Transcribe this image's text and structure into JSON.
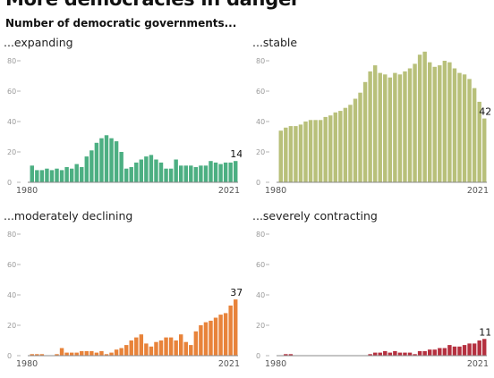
{
  "header": {
    "title": "More democracies in danger",
    "subtitle": "Number of democratic governments..."
  },
  "chart_data": [
    {
      "type": "bar",
      "title": "...expanding",
      "color": "#4caf82",
      "ylim": [
        0,
        80
      ],
      "yticks": [
        0,
        20,
        40,
        60,
        80
      ],
      "x_start_label": "1980",
      "x_end_label": "2021",
      "end_label": "14",
      "x": [
        1980,
        1981,
        1982,
        1983,
        1984,
        1985,
        1986,
        1987,
        1988,
        1989,
        1990,
        1991,
        1992,
        1993,
        1994,
        1995,
        1996,
        1997,
        1998,
        1999,
        2000,
        2001,
        2002,
        2003,
        2004,
        2005,
        2006,
        2007,
        2008,
        2009,
        2010,
        2011,
        2012,
        2013,
        2014,
        2015,
        2016,
        2017,
        2018,
        2019,
        2020,
        2021
      ],
      "values": [
        11,
        8,
        8,
        9,
        8,
        9,
        8,
        10,
        9,
        12,
        10,
        17,
        21,
        26,
        29,
        31,
        29,
        27,
        20,
        9,
        10,
        13,
        15,
        17,
        18,
        15,
        13,
        9,
        9,
        15,
        11,
        11,
        11,
        10,
        11,
        11,
        14,
        13,
        12,
        13,
        13,
        14
      ]
    },
    {
      "type": "bar",
      "title": "...stable",
      "color": "#b8c07a",
      "ylim": [
        0,
        80
      ],
      "yticks": [
        0,
        20,
        40,
        60,
        80
      ],
      "x_start_label": "1980",
      "x_end_label": "2021",
      "end_label": "42",
      "x": [
        1980,
        1981,
        1982,
        1983,
        1984,
        1985,
        1986,
        1987,
        1988,
        1989,
        1990,
        1991,
        1992,
        1993,
        1994,
        1995,
        1996,
        1997,
        1998,
        1999,
        2000,
        2001,
        2002,
        2003,
        2004,
        2005,
        2006,
        2007,
        2008,
        2009,
        2010,
        2011,
        2012,
        2013,
        2014,
        2015,
        2016,
        2017,
        2018,
        2019,
        2020,
        2021
      ],
      "values": [
        34,
        36,
        37,
        37,
        38,
        40,
        41,
        41,
        41,
        43,
        44,
        46,
        47,
        49,
        51,
        55,
        59,
        66,
        73,
        77,
        72,
        71,
        69,
        72,
        71,
        73,
        75,
        78,
        84,
        86,
        79,
        76,
        77,
        80,
        79,
        75,
        72,
        71,
        68,
        62,
        53,
        42
      ]
    },
    {
      "type": "bar",
      "title": "...moderately declining",
      "color": "#e8833a",
      "ylim": [
        0,
        80
      ],
      "yticks": [
        0,
        20,
        40,
        60,
        80
      ],
      "x_start_label": "1980",
      "x_end_label": "2021",
      "end_label": "37",
      "x": [
        1980,
        1981,
        1982,
        1983,
        1984,
        1985,
        1986,
        1987,
        1988,
        1989,
        1990,
        1991,
        1992,
        1993,
        1994,
        1995,
        1996,
        1997,
        1998,
        1999,
        2000,
        2001,
        2002,
        2003,
        2004,
        2005,
        2006,
        2007,
        2008,
        2009,
        2010,
        2011,
        2012,
        2013,
        2014,
        2015,
        2016,
        2017,
        2018,
        2019,
        2020,
        2021
      ],
      "values": [
        1,
        1,
        1,
        0,
        0,
        1,
        5,
        2,
        2,
        2,
        3,
        3,
        3,
        2,
        3,
        1,
        2,
        4,
        5,
        7,
        10,
        12,
        14,
        8,
        6,
        9,
        10,
        12,
        12,
        10,
        14,
        9,
        7,
        16,
        20,
        22,
        23,
        25,
        27,
        28,
        33,
        37
      ]
    },
    {
      "type": "bar",
      "title": "...severely contracting",
      "color": "#b5303f",
      "ylim": [
        0,
        80
      ],
      "yticks": [
        0,
        20,
        40,
        60,
        80
      ],
      "x_start_label": "1980",
      "x_end_label": "2021",
      "end_label": "11",
      "x": [
        1980,
        1981,
        1982,
        1983,
        1984,
        1985,
        1986,
        1987,
        1988,
        1989,
        1990,
        1991,
        1992,
        1993,
        1994,
        1995,
        1996,
        1997,
        1998,
        1999,
        2000,
        2001,
        2002,
        2003,
        2004,
        2005,
        2006,
        2007,
        2008,
        2009,
        2010,
        2011,
        2012,
        2013,
        2014,
        2015,
        2016,
        2017,
        2018,
        2019,
        2020,
        2021
      ],
      "values": [
        0,
        1,
        1,
        0,
        0,
        0,
        0,
        0,
        0,
        0,
        0,
        0,
        0,
        0,
        0,
        0,
        0,
        0,
        1,
        2,
        2,
        3,
        2,
        3,
        2,
        2,
        2,
        1,
        3,
        3,
        4,
        4,
        5,
        5,
        7,
        6,
        6,
        7,
        8,
        8,
        10,
        11
      ]
    }
  ]
}
